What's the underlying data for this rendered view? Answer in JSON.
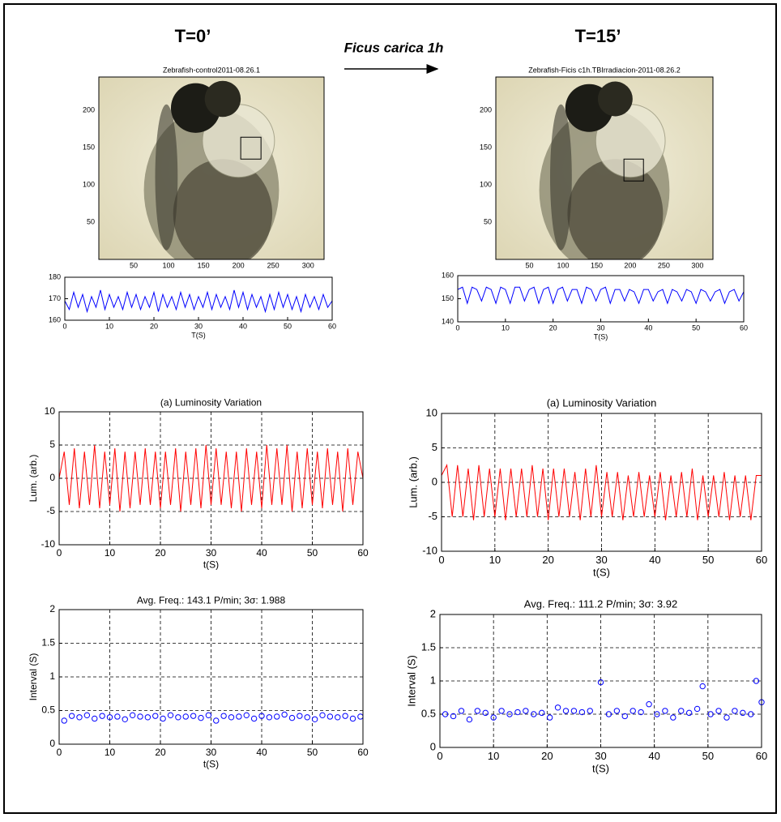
{
  "header": {
    "left": "T=0’",
    "middle": "Ficus carica 1h",
    "right": "T=15’"
  },
  "chart_data": [
    {
      "type": "image",
      "title": "Zebrafish-control2011-08.26.1",
      "xlim": [
        0,
        323
      ],
      "ylim": [
        0,
        245
      ],
      "xticks": [
        50,
        100,
        150,
        200,
        250,
        300
      ],
      "yticks": [
        50,
        100,
        150,
        200
      ]
    },
    {
      "type": "image",
      "title": "Zebrafish-Ficis c1h.TBIrradiacion-2011-08.26.2",
      "xlim": [
        0,
        323
      ],
      "ylim": [
        0,
        245
      ],
      "xticks": [
        50,
        100,
        150,
        200,
        250,
        300
      ],
      "yticks": [
        50,
        100,
        150,
        200
      ]
    },
    {
      "type": "line",
      "x_label": "T(S)",
      "xlim": [
        0,
        60
      ],
      "ylim": [
        160,
        180
      ],
      "xticks": [
        0,
        10,
        20,
        30,
        40,
        50,
        60
      ],
      "yticks": [
        160,
        170,
        180
      ],
      "grid": false,
      "x": [
        0,
        1,
        2,
        3,
        4,
        5,
        6,
        7,
        8,
        9,
        10,
        11,
        12,
        13,
        14,
        15,
        16,
        17,
        18,
        19,
        20,
        21,
        22,
        23,
        24,
        25,
        26,
        27,
        28,
        29,
        30,
        31,
        32,
        33,
        34,
        35,
        36,
        37,
        38,
        39,
        40,
        41,
        42,
        43,
        44,
        45,
        46,
        47,
        48,
        49,
        50,
        51,
        52,
        53,
        54,
        55,
        56,
        57,
        58,
        59,
        60
      ],
      "series": [
        {
          "color": "#0000ff",
          "values": [
            169,
            165,
            173,
            166,
            172,
            164,
            171,
            166,
            174,
            165,
            172,
            166,
            171,
            165,
            173,
            166,
            172,
            165,
            171,
            166,
            173,
            164,
            172,
            166,
            171,
            165,
            173,
            166,
            172,
            165,
            171,
            166,
            173,
            165,
            172,
            166,
            171,
            165,
            174,
            166,
            173,
            165,
            172,
            166,
            171,
            164,
            172,
            165,
            173,
            166,
            172,
            165,
            171,
            164,
            172,
            166,
            171,
            165,
            172,
            166,
            169
          ]
        }
      ]
    },
    {
      "type": "line",
      "x_label": "T(S)",
      "xlim": [
        0,
        60
      ],
      "ylim": [
        140,
        160
      ],
      "xticks": [
        0,
        10,
        20,
        30,
        40,
        50,
        60
      ],
      "yticks": [
        140,
        150,
        160
      ],
      "grid": false,
      "x": [
        0,
        1,
        2,
        3,
        4,
        5,
        6,
        7,
        8,
        9,
        10,
        11,
        12,
        13,
        14,
        15,
        16,
        17,
        18,
        19,
        20,
        21,
        22,
        23,
        24,
        25,
        26,
        27,
        28,
        29,
        30,
        31,
        32,
        33,
        34,
        35,
        36,
        37,
        38,
        39,
        40,
        41,
        42,
        43,
        44,
        45,
        46,
        47,
        48,
        49,
        50,
        51,
        52,
        53,
        54,
        55,
        56,
        57,
        58,
        59,
        60
      ],
      "series": [
        {
          "color": "#0000ff",
          "values": [
            154,
            155,
            148,
            155,
            154,
            149,
            155,
            154,
            148,
            155,
            154,
            148,
            155,
            155,
            149,
            154,
            155,
            148,
            154,
            155,
            148,
            154,
            155,
            149,
            154,
            154,
            148,
            155,
            154,
            149,
            154,
            155,
            148,
            154,
            154,
            149,
            154,
            153,
            148,
            154,
            154,
            149,
            153,
            154,
            148,
            154,
            153,
            149,
            154,
            153,
            148,
            154,
            153,
            149,
            153,
            154,
            148,
            153,
            154,
            149,
            153
          ]
        }
      ]
    },
    {
      "type": "line",
      "title": "(a) Luminosity Variation",
      "x_label": "t(S)",
      "y_label": "Lum. (arb.)",
      "xlim": [
        0,
        60
      ],
      "ylim": [
        -10,
        10
      ],
      "xticks": [
        0,
        10,
        20,
        30,
        40,
        50,
        60
      ],
      "yticks": [
        -10,
        -5,
        0,
        5,
        10
      ],
      "grid": true,
      "x": [
        0,
        1,
        2,
        3,
        4,
        5,
        6,
        7,
        8,
        9,
        10,
        11,
        12,
        13,
        14,
        15,
        16,
        17,
        18,
        19,
        20,
        21,
        22,
        23,
        24,
        25,
        26,
        27,
        28,
        29,
        30,
        31,
        32,
        33,
        34,
        35,
        36,
        37,
        38,
        39,
        40,
        41,
        42,
        43,
        44,
        45,
        46,
        47,
        48,
        49,
        50,
        51,
        52,
        53,
        54,
        55,
        56,
        57,
        58,
        59,
        60
      ],
      "series": [
        {
          "color": "#ff0000",
          "values": [
            0,
            4,
            -4,
            4.5,
            -4.5,
            4,
            -4,
            5,
            -4.5,
            4,
            -4,
            4.5,
            -5,
            4,
            -4.5,
            4,
            -4,
            4.5,
            -4,
            4,
            -4.5,
            4,
            -4,
            4.5,
            -5,
            4,
            -4,
            4.5,
            -4.5,
            5,
            -4,
            4.5,
            -4,
            4,
            -4.5,
            4,
            -5,
            4.5,
            -4,
            4,
            -4.5,
            5,
            -4,
            4.5,
            -4,
            5,
            -5,
            4,
            -4.5,
            4.5,
            -4,
            4,
            -4.5,
            4.5,
            -4,
            4,
            -5,
            4.5,
            -4,
            4,
            0
          ]
        }
      ]
    },
    {
      "type": "line",
      "title": "(a) Luminosity Variation",
      "x_label": "t(S)",
      "y_label": "Lum. (arb.)",
      "xlim": [
        0,
        60
      ],
      "ylim": [
        -10,
        10
      ],
      "xticks": [
        0,
        10,
        20,
        30,
        40,
        50,
        60
      ],
      "yticks": [
        -10,
        -5,
        0,
        5,
        10
      ],
      "grid": true,
      "x": [
        0,
        1,
        2,
        3,
        4,
        5,
        6,
        7,
        8,
        9,
        10,
        11,
        12,
        13,
        14,
        15,
        16,
        17,
        18,
        19,
        20,
        21,
        22,
        23,
        24,
        25,
        26,
        27,
        28,
        29,
        30,
        31,
        32,
        33,
        34,
        35,
        36,
        37,
        38,
        39,
        40,
        41,
        42,
        43,
        44,
        45,
        46,
        47,
        48,
        49,
        50,
        51,
        52,
        53,
        54,
        55,
        56,
        57,
        58,
        59,
        60
      ],
      "series": [
        {
          "color": "#ff0000",
          "values": [
            1,
            2.5,
            -5,
            2.5,
            -5,
            2,
            -5.5,
            2.5,
            -5,
            2,
            -5,
            2,
            -5.5,
            2,
            -5,
            2,
            -5,
            2.5,
            -5,
            2,
            -5.5,
            2,
            -5,
            2,
            -5,
            1.5,
            -5.5,
            2,
            -5,
            2.5,
            -5,
            1.5,
            -5,
            1.5,
            -5.5,
            1,
            -5,
            1.5,
            -5,
            1,
            -5,
            1.5,
            -5.5,
            1,
            -5,
            1.5,
            -5,
            2,
            -5.5,
            1,
            -5,
            1,
            -5,
            1.5,
            -5.5,
            1,
            -5,
            1,
            -5.5,
            1,
            1
          ]
        }
      ]
    },
    {
      "type": "scatter",
      "title": "Avg. Freq.: 143.1 P/min; 3σ: 1.988",
      "x_label": "t(S)",
      "y_label": "Interval (S)",
      "xlim": [
        0,
        60
      ],
      "ylim": [
        0,
        2
      ],
      "xticks": [
        0,
        10,
        20,
        30,
        40,
        50,
        60
      ],
      "yticks": [
        0,
        0.5,
        1,
        1.5,
        2
      ],
      "grid": true,
      "x": [
        1,
        2.5,
        4,
        5.5,
        7,
        8.5,
        10,
        11.5,
        13,
        14.5,
        16,
        17.5,
        19,
        20.5,
        22,
        23.5,
        25,
        26.5,
        28,
        29.5,
        31,
        32.5,
        34,
        35.5,
        37,
        38.5,
        40,
        41.5,
        43,
        44.5,
        46,
        47.5,
        49,
        50.5,
        52,
        53.5,
        55,
        56.5,
        58,
        59.5
      ],
      "series": [
        {
          "color": "#0000ff",
          "values": [
            0.35,
            0.42,
            0.4,
            0.43,
            0.38,
            0.42,
            0.4,
            0.41,
            0.37,
            0.43,
            0.41,
            0.4,
            0.42,
            0.38,
            0.43,
            0.4,
            0.41,
            0.42,
            0.39,
            0.43,
            0.35,
            0.42,
            0.4,
            0.41,
            0.43,
            0.38,
            0.42,
            0.4,
            0.41,
            0.44,
            0.39,
            0.42,
            0.4,
            0.37,
            0.43,
            0.41,
            0.4,
            0.42,
            0.38,
            0.41
          ]
        }
      ]
    },
    {
      "type": "scatter",
      "title": "Avg. Freq.: 111.2 P/min; 3σ: 3.92",
      "x_label": "t(S)",
      "y_label": "Interval (S)",
      "xlim": [
        0,
        60
      ],
      "ylim": [
        0,
        2
      ],
      "xticks": [
        0,
        10,
        20,
        30,
        40,
        50,
        60
      ],
      "yticks": [
        0,
        0.5,
        1,
        1.5,
        2
      ],
      "grid": true,
      "x": [
        1,
        2.5,
        4,
        5.5,
        7,
        8.5,
        10,
        11.5,
        13,
        14.5,
        16,
        17.5,
        19,
        20.5,
        22,
        23.5,
        25,
        26.5,
        28,
        30,
        31.5,
        33,
        34.5,
        36,
        37.5,
        39,
        40.5,
        42,
        43.5,
        45,
        46.5,
        48,
        49,
        50.5,
        52,
        53.5,
        55,
        56.5,
        58,
        59,
        60
      ],
      "series": [
        {
          "color": "#0000ff",
          "values": [
            0.5,
            0.47,
            0.55,
            0.42,
            0.55,
            0.52,
            0.45,
            0.55,
            0.5,
            0.53,
            0.55,
            0.5,
            0.52,
            0.45,
            0.6,
            0.55,
            0.55,
            0.53,
            0.55,
            0.98,
            0.5,
            0.55,
            0.47,
            0.55,
            0.53,
            0.65,
            0.5,
            0.55,
            0.45,
            0.55,
            0.52,
            0.58,
            0.92,
            0.5,
            0.55,
            0.45,
            0.55,
            0.52,
            0.5,
            1.0,
            0.68
          ]
        }
      ]
    }
  ]
}
